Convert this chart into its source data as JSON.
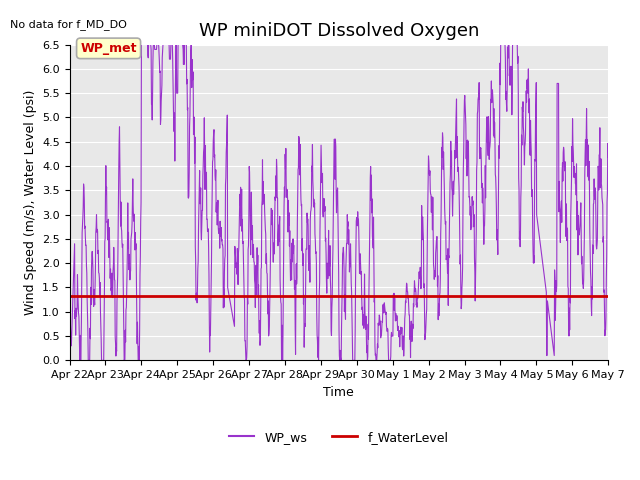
{
  "title": "WP miniDOT Dissolved Oxygen",
  "top_left_text": "No data for f_MD_DO",
  "ylabel": "Wind Speed (m/s), Water Level (psi)",
  "xlabel": "Time",
  "annotation_label": "WP_met",
  "annotation_color": "#cc0000",
  "annotation_bg": "#ffffcc",
  "annotation_border": "#aaaaaa",
  "ylim": [
    0.0,
    6.5
  ],
  "yticks": [
    0.0,
    0.5,
    1.0,
    1.5,
    2.0,
    2.5,
    3.0,
    3.5,
    4.0,
    4.5,
    5.0,
    5.5,
    6.0,
    6.5
  ],
  "line_color_ws": "#9933cc",
  "line_color_wl": "#cc0000",
  "water_level_value": 1.33,
  "legend_ws": "WP_ws",
  "legend_wl": "f_WaterLevel",
  "background_color": "#e8e8e8",
  "grid_color": "#ffffff",
  "title_fontsize": 13,
  "label_fontsize": 9,
  "tick_fontsize": 8
}
